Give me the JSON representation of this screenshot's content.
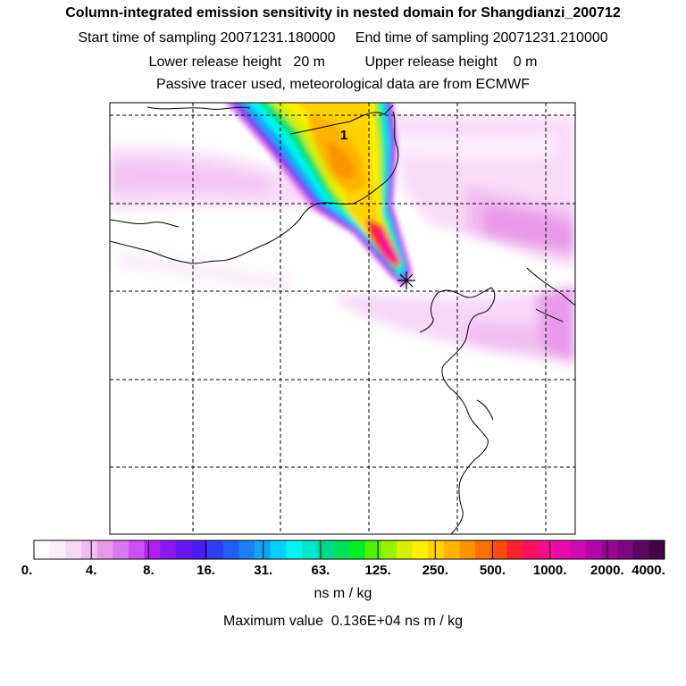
{
  "header": {
    "title": "Column-integrated emission sensitivity in nested domain for Shangdianzi_200712",
    "sampling_line": "Start time of sampling 20071231.180000     End time of sampling 20071231.210000",
    "release_line": "Lower release height   20 m          Upper release height    0 m",
    "tracer_line": "Passive tracer used, meteorological data are from ECMWF"
  },
  "map": {
    "marker_label": "1"
  },
  "colorbar": {
    "labels": [
      "0.",
      "4.",
      "8.",
      "16.",
      "31.",
      "63.",
      "125.",
      "250.",
      "500.",
      "1000.",
      "2000.",
      "4000."
    ],
    "colors": [
      "#ffffff",
      "#fdeffd",
      "#f8d8f8",
      "#f1bdf1",
      "#e89ae8",
      "#dc78ef",
      "#cb50f2",
      "#b01ff5",
      "#8a18f0",
      "#6616f0",
      "#4a1ef2",
      "#2e40f5",
      "#1f5ff7",
      "#1a80f8",
      "#10a4f9",
      "#00d0f8",
      "#00f4f0",
      "#00e6c8",
      "#00d890",
      "#00e05a",
      "#00ee28",
      "#50f200",
      "#98f200",
      "#d6f000",
      "#fff000",
      "#ffd200",
      "#ffb400",
      "#ff9400",
      "#ff7000",
      "#ff4a10",
      "#ff2030",
      "#ff1060",
      "#f80c90",
      "#e80aa8",
      "#d008b0",
      "#b406a8",
      "#980696",
      "#7c0680",
      "#5c0660",
      "#400448"
    ],
    "units": "ns m / kg",
    "max_value": "Maximum value  0.136E+04 ns m / kg"
  }
}
